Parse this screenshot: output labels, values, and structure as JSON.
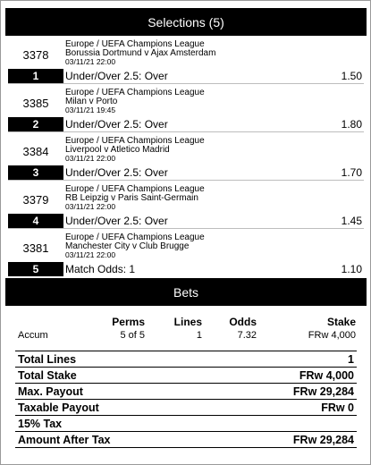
{
  "selections_header": "Selections (5)",
  "selections": [
    {
      "id": "3378",
      "league": "Europe / UEFA Champions League",
      "match": "Borussia Dortmund v Ajax Amsterdam",
      "datetime": "03/11/21 22:00",
      "number": "1",
      "market": "Under/Over 2.5: Over",
      "odds": "1.50"
    },
    {
      "id": "3385",
      "league": "Europe / UEFA Champions League",
      "match": "Milan v Porto",
      "datetime": "03/11/21 19:45",
      "number": "2",
      "market": "Under/Over 2.5: Over",
      "odds": "1.80"
    },
    {
      "id": "3384",
      "league": "Europe / UEFA Champions League",
      "match": "Liverpool v Atletico Madrid",
      "datetime": "03/11/21 22:00",
      "number": "3",
      "market": "Under/Over 2.5: Over",
      "odds": "1.70"
    },
    {
      "id": "3379",
      "league": "Europe / UEFA Champions League",
      "match": "RB Leipzig v Paris Saint-Germain",
      "datetime": "03/11/21 22:00",
      "number": "4",
      "market": "Under/Over 2.5: Over",
      "odds": "1.45"
    },
    {
      "id": "3381",
      "league": "Europe / UEFA Champions League",
      "match": "Manchester City v Club Brugge",
      "datetime": "03/11/21 22:00",
      "number": "5",
      "market": "Match Odds: 1",
      "odds": "1.10"
    }
  ],
  "bets_header": "Bets",
  "bets_table": {
    "headers": {
      "perms": "Perms",
      "lines": "Lines",
      "odds": "Odds",
      "stake": "Stake"
    },
    "row": {
      "type": "Accum",
      "perms": "5 of 5",
      "lines": "1",
      "odds": "7.32",
      "stake": "FRw 4,000"
    }
  },
  "totals": [
    {
      "label": "Total Lines",
      "value": "1"
    },
    {
      "label": "Total Stake",
      "value": "FRw 4,000"
    },
    {
      "label": "Max. Payout",
      "value": "FRw 29,284"
    },
    {
      "label": "Taxable Payout",
      "value": "FRw 0"
    },
    {
      "label": "15% Tax",
      "value": ""
    },
    {
      "label": "Amount After Tax",
      "value": "FRw 29,284"
    }
  ]
}
